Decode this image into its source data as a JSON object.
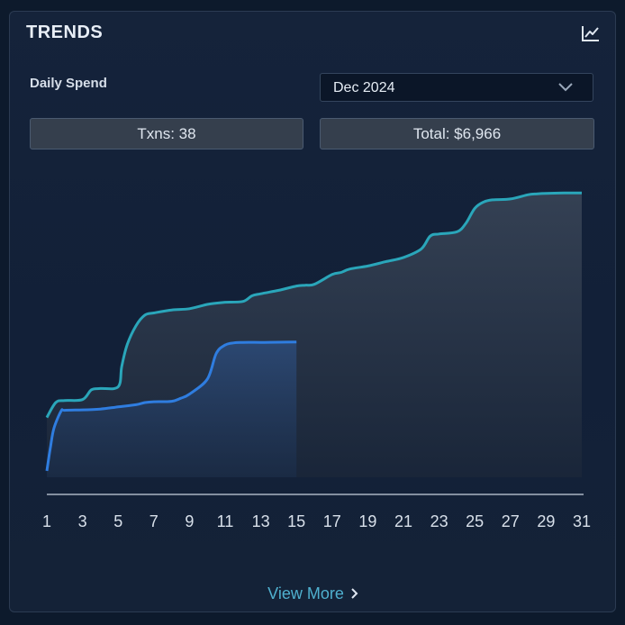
{
  "header": {
    "title": "TRENDS",
    "icon": "line-chart-icon"
  },
  "controls": {
    "label": "Daily Spend",
    "month_select": {
      "value": "Dec 2024",
      "icon": "chevron-down-icon"
    }
  },
  "stats": {
    "txns": "Txns: 38",
    "total": "Total: $6,966"
  },
  "footer": {
    "view_more": "View More",
    "icon": "chevron-right-icon"
  },
  "colors": {
    "current_series": "#2aa6ba",
    "previous_series": "#2f7de0",
    "axis": "#a9b4c3"
  },
  "chart_data": {
    "type": "area",
    "title": "",
    "xlabel": "",
    "ylabel": "",
    "x_ticks": [
      "1",
      "3",
      "5",
      "7",
      "9",
      "11",
      "13",
      "15",
      "17",
      "19",
      "21",
      "23",
      "25",
      "27",
      "29",
      "31"
    ],
    "xlim": [
      1,
      31
    ],
    "ylim": [
      0,
      7700
    ],
    "grid": false,
    "legend": "none",
    "series": [
      {
        "x": [
          1,
          1.5,
          2,
          3,
          3.5,
          4,
          5,
          5.2,
          5.5,
          6,
          6.5,
          7,
          8,
          9,
          10,
          10.5,
          11,
          12,
          12.5,
          13,
          14,
          15,
          15.5,
          16,
          17,
          17.5,
          18,
          19,
          20,
          21,
          22,
          22.5,
          23,
          24,
          24.5,
          25,
          25.5,
          26,
          27,
          28,
          28.5,
          29,
          30,
          31
        ],
        "values": [
          1400,
          1750,
          1800,
          1820,
          2050,
          2080,
          2120,
          2600,
          3100,
          3550,
          3800,
          3850,
          3920,
          3950,
          4050,
          4080,
          4100,
          4120,
          4250,
          4300,
          4380,
          4480,
          4500,
          4520,
          4750,
          4800,
          4880,
          4950,
          5050,
          5150,
          5350,
          5650,
          5700,
          5750,
          5950,
          6300,
          6450,
          6500,
          6520,
          6620,
          6640,
          6650,
          6660,
          6660
        ]
      },
      {
        "x": [
          1,
          1.2,
          1.4,
          1.8,
          2,
          3,
          4,
          5,
          6,
          6.5,
          7,
          8,
          8.5,
          9,
          10,
          10.5,
          11,
          11.5,
          12,
          13,
          14,
          15
        ],
        "values": [
          150,
          700,
          1150,
          1550,
          1570,
          1580,
          1600,
          1650,
          1700,
          1750,
          1770,
          1780,
          1850,
          1950,
          2300,
          2900,
          3100,
          3150,
          3160,
          3160,
          3165,
          3170
        ]
      }
    ]
  }
}
